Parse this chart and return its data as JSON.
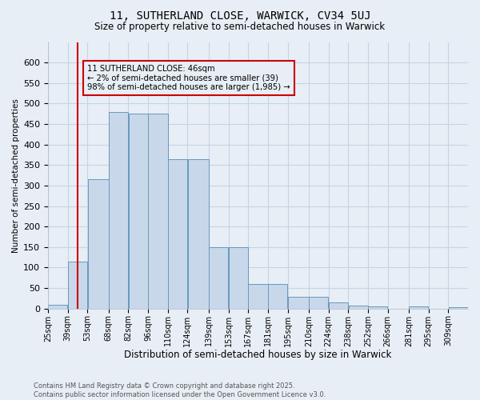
{
  "title1": "11, SUTHERLAND CLOSE, WARWICK, CV34 5UJ",
  "title2": "Size of property relative to semi-detached houses in Warwick",
  "xlabel": "Distribution of semi-detached houses by size in Warwick",
  "ylabel": "Number of semi-detached properties",
  "annotation_title": "11 SUTHERLAND CLOSE: 46sqm",
  "annotation_line1": "← 2% of semi-detached houses are smaller (39)",
  "annotation_line2": "98% of semi-detached houses are larger (1,985) →",
  "property_size": 46,
  "bin_labels": [
    "25sqm",
    "39sqm",
    "53sqm",
    "68sqm",
    "82sqm",
    "96sqm",
    "110sqm",
    "124sqm",
    "139sqm",
    "153sqm",
    "167sqm",
    "181sqm",
    "195sqm",
    "210sqm",
    "224sqm",
    "238sqm",
    "252sqm",
    "266sqm",
    "281sqm",
    "295sqm",
    "309sqm"
  ],
  "bin_edges": [
    25,
    39,
    53,
    68,
    82,
    96,
    110,
    124,
    139,
    153,
    167,
    181,
    195,
    210,
    224,
    238,
    252,
    266,
    281,
    295,
    309,
    323
  ],
  "bar_heights": [
    10,
    115,
    315,
    480,
    475,
    475,
    365,
    365,
    150,
    150,
    60,
    60,
    28,
    28,
    15,
    8,
    5,
    0,
    5,
    0,
    3
  ],
  "bar_color": "#c8d8ea",
  "bar_edge_color": "#6699bb",
  "vline_color": "#cc0000",
  "vline_x": 46,
  "annotation_box_color": "#cc0000",
  "grid_color": "#c5d5e5",
  "background_color": "#e8eef5",
  "footer_line1": "Contains HM Land Registry data © Crown copyright and database right 2025.",
  "footer_line2": "Contains public sector information licensed under the Open Government Licence v3.0.",
  "ylim": [
    0,
    650
  ],
  "yticks": [
    0,
    50,
    100,
    150,
    200,
    250,
    300,
    350,
    400,
    450,
    500,
    550,
    600
  ]
}
